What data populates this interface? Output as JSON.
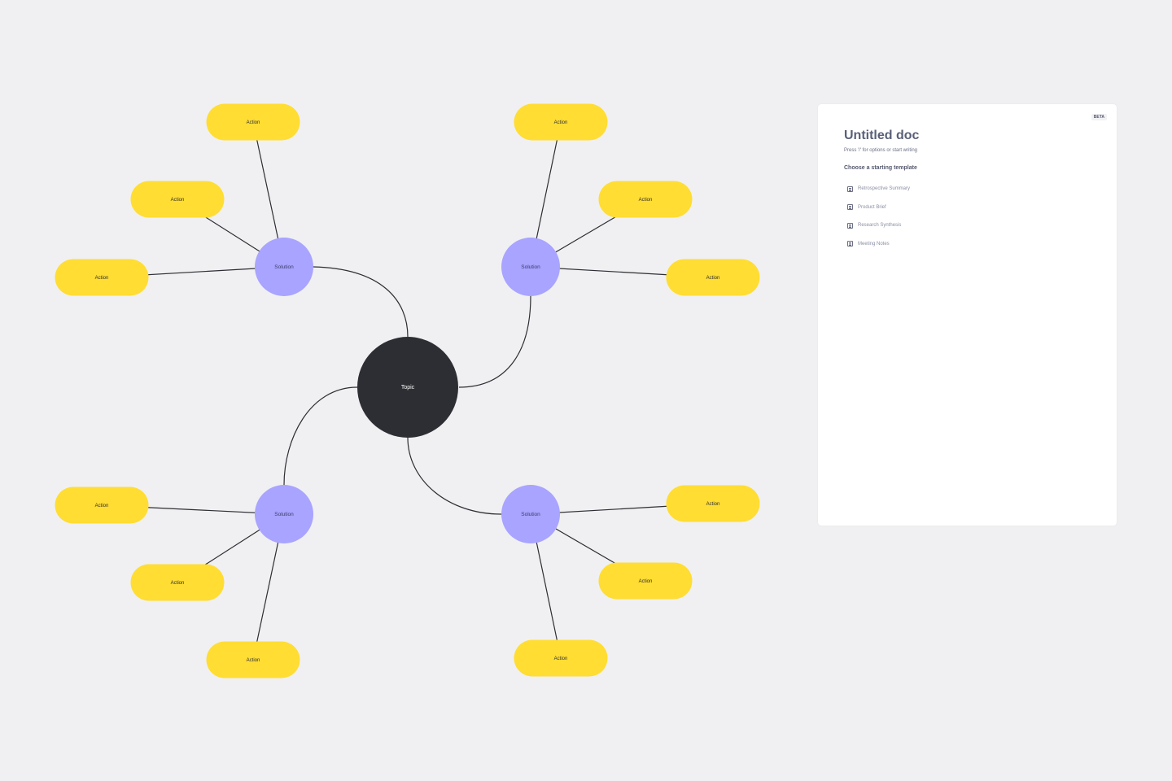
{
  "mindmap": {
    "topic": "Topic",
    "branches": [
      {
        "solution": "Solution",
        "actions": [
          "Action",
          "Action",
          "Action"
        ]
      },
      {
        "solution": "Solution",
        "actions": [
          "Action",
          "Action",
          "Action"
        ]
      },
      {
        "solution": "Solution",
        "actions": [
          "Action",
          "Action",
          "Action"
        ]
      },
      {
        "solution": "Solution",
        "actions": [
          "Action",
          "Action",
          "Action"
        ]
      }
    ],
    "colors": {
      "topic": "#2d2e33",
      "solution": "#a8a4ff",
      "action": "#ffdd33",
      "line": "#2d2e33",
      "background": "#f0f0f2"
    }
  },
  "doc": {
    "badge": "BETA",
    "title": "Untitled doc",
    "hint": "Press '/' for options or start writing",
    "templates_heading": "Choose a starting template",
    "templates": [
      {
        "label": "Retrospective Summary",
        "icon": "document-icon"
      },
      {
        "label": "Product Brief",
        "icon": "document-icon"
      },
      {
        "label": "Research Synthesis",
        "icon": "document-icon"
      },
      {
        "label": "Meeting Notes",
        "icon": "document-icon"
      }
    ]
  }
}
